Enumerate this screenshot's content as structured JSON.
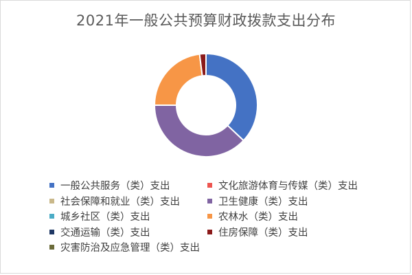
{
  "chart_data": {
    "type": "pie",
    "variant": "doughnut",
    "title": "2021年一般公共预算财政拨款支出分布",
    "legend_position": "bottom",
    "series": [
      {
        "name": "一般公共服务（类）支出",
        "value": 37.0,
        "color": "#4472c4"
      },
      {
        "name": "文化旅游体育与传媒（类）支出",
        "value": 0.0,
        "color": "#ed5550"
      },
      {
        "name": "社会保障和就业（类）支出",
        "value": 0.0,
        "color": "#c9b88a"
      },
      {
        "name": "卫生健康（类）支出",
        "value": 38.0,
        "color": "#8064a2"
      },
      {
        "name": "城乡社区（类）支出",
        "value": 0.0,
        "color": "#4bacc6"
      },
      {
        "name": "农林水（类）支出",
        "value": 23.0,
        "color": "#f79646"
      },
      {
        "name": "交通运输（类）支出",
        "value": 0.0,
        "color": "#1f3864"
      },
      {
        "name": "住房保障（类）支出",
        "value": 2.0,
        "color": "#8b1a1a"
      },
      {
        "name": "灾害防治及应急管理（类）支出",
        "value": 0.0,
        "color": "#6b6b3a"
      }
    ]
  }
}
